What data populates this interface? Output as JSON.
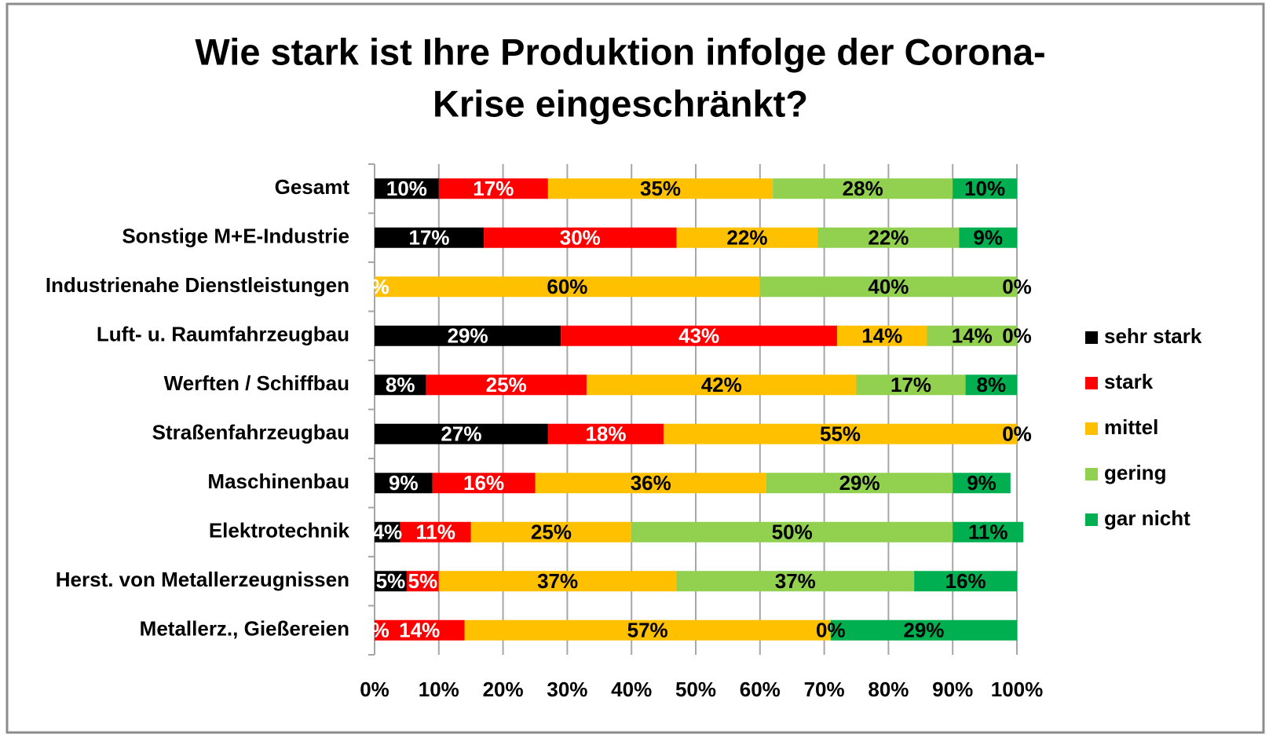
{
  "chart_data": {
    "type": "stacked-bar-horizontal",
    "title": [
      "Wie stark ist Ihre Produktion infolge der Corona-",
      "Krise eingeschränkt?"
    ],
    "categories": [
      "Gesamt",
      "Sonstige M+E-Industrie",
      "Industrienahe Dienstleistungen",
      "Luft- u. Raumfahrzeugbau",
      "Werften / Schiffbau",
      "Straßenfahrzeugbau",
      "Maschinenbau",
      "Elektrotechnik",
      "Herst. von Metallerzeugnissen",
      "Metallerz., Gießereien"
    ],
    "series": [
      {
        "name": "sehr stark",
        "color": "#000000",
        "label_color": "#ffffff",
        "values": [
          10,
          17,
          0,
          29,
          8,
          27,
          9,
          4,
          5,
          0
        ],
        "value_labels": [
          "10%",
          "17%",
          "0%",
          "29%",
          "8%",
          "27%",
          "9%",
          "4%",
          "5%",
          "0%"
        ]
      },
      {
        "name": "stark",
        "color": "#ff0000",
        "label_color": "#ffffff",
        "values": [
          17,
          30,
          0,
          43,
          25,
          18,
          16,
          11,
          5,
          14
        ],
        "value_labels": [
          "17%",
          "30%",
          "0%",
          "43%",
          "25%",
          "18%",
          "16%",
          "11%",
          "5%",
          "14%"
        ]
      },
      {
        "name": "mittel",
        "color": "#ffc000",
        "label_color": "#000000",
        "values": [
          35,
          22,
          60,
          14,
          42,
          55,
          36,
          25,
          37,
          57
        ],
        "value_labels": [
          "35%",
          "22%",
          "60%",
          "14%",
          "42%",
          "55%",
          "36%",
          "25%",
          "37%",
          "57%"
        ]
      },
      {
        "name": "gering",
        "color": "#92d050",
        "label_color": "#000000",
        "values": [
          28,
          22,
          40,
          14,
          17,
          0,
          29,
          50,
          37,
          0
        ],
        "value_labels": [
          "28%",
          "22%",
          "40%",
          "14%",
          "17%",
          "0%",
          "29%",
          "50%",
          "37%",
          "0%"
        ]
      },
      {
        "name": "gar nicht",
        "color": "#00b050",
        "label_color": "#000000",
        "values": [
          10,
          9,
          0,
          0,
          8,
          0,
          9,
          11,
          16,
          29
        ],
        "value_labels": [
          "10%",
          "9%",
          "0%",
          "0%",
          "8%",
          "0%",
          "9%",
          "11%",
          "16%",
          "29%"
        ]
      }
    ],
    "xlim": [
      0,
      100
    ],
    "xticks": [
      {
        "value": 0,
        "label": "0%"
      },
      {
        "value": 10,
        "label": "10%"
      },
      {
        "value": 20,
        "label": "20%"
      },
      {
        "value": 30,
        "label": "30%"
      },
      {
        "value": 40,
        "label": "40%"
      },
      {
        "value": 50,
        "label": "50%"
      },
      {
        "value": 60,
        "label": "60%"
      },
      {
        "value": 70,
        "label": "70%"
      },
      {
        "value": 80,
        "label": "80%"
      },
      {
        "value": 90,
        "label": "90%"
      },
      {
        "value": 100,
        "label": "100%"
      }
    ],
    "grid": true,
    "legend": "right"
  }
}
